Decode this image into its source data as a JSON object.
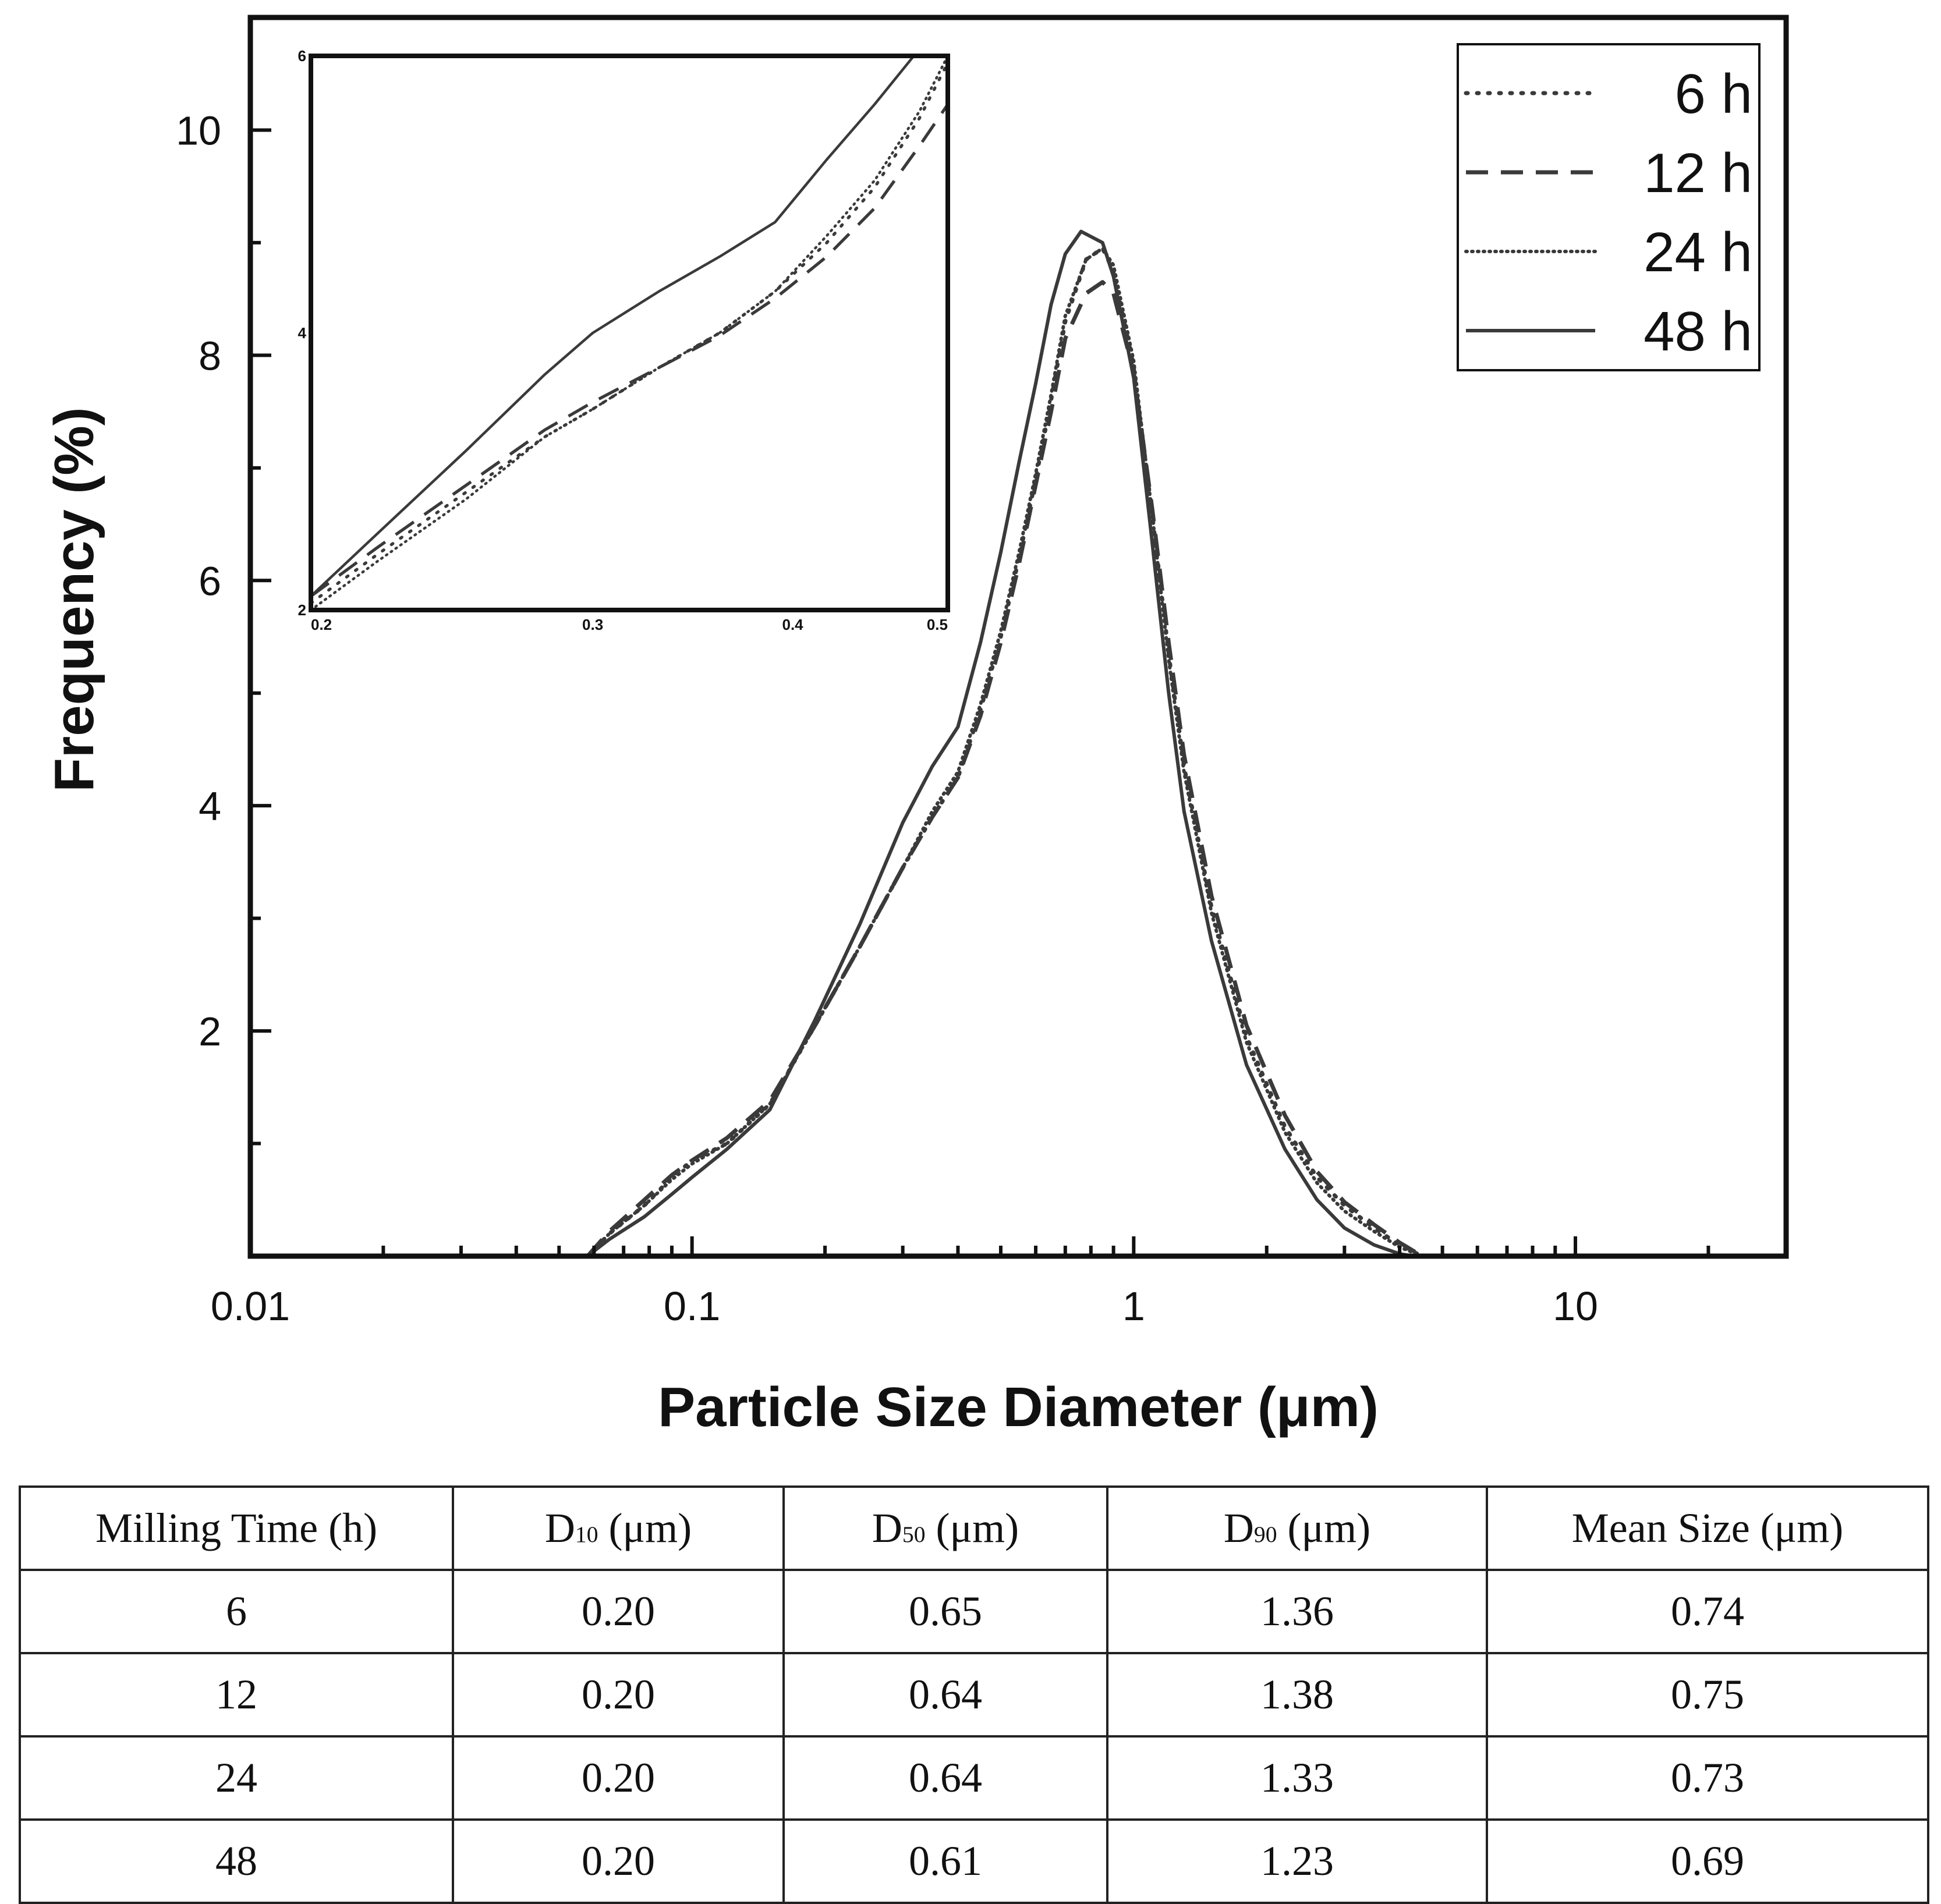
{
  "chart_data": {
    "type": "line",
    "xlabel": "Particle Size Diameter (μm)",
    "ylabel": "Frequency (%)",
    "x_scale": "log",
    "xlim": [
      0.01,
      30
    ],
    "ylim": [
      0,
      11
    ],
    "x_ticks": [
      "0.01",
      "0.1",
      "1",
      "10"
    ],
    "y_ticks": [
      "2",
      "4",
      "6",
      "8",
      "10"
    ],
    "legend_position": "top-right",
    "series": [
      {
        "name": "6 h",
        "style": "dotted",
        "x": [
          0.058,
          0.065,
          0.078,
          0.09,
          0.1,
          0.12,
          0.15,
          0.19,
          0.24,
          0.3,
          0.35,
          0.4,
          0.45,
          0.5,
          0.55,
          0.6,
          0.65,
          0.7,
          0.78,
          0.85,
          0.9,
          1.0,
          1.1,
          1.2,
          1.3,
          1.5,
          1.8,
          2.2,
          2.6,
          3.0,
          3.5,
          4.0,
          4.5
        ],
        "y": [
          0.0,
          0.2,
          0.45,
          0.7,
          0.85,
          1.0,
          1.35,
          2.05,
          2.75,
          3.45,
          3.9,
          4.25,
          4.85,
          5.5,
          6.2,
          6.9,
          7.6,
          8.3,
          8.85,
          8.95,
          8.75,
          7.9,
          6.6,
          5.35,
          4.35,
          3.1,
          1.95,
          1.15,
          0.7,
          0.45,
          0.25,
          0.1,
          0.0
        ]
      },
      {
        "name": "12 h",
        "style": "dashed",
        "x": [
          0.058,
          0.065,
          0.078,
          0.09,
          0.1,
          0.12,
          0.15,
          0.19,
          0.24,
          0.3,
          0.35,
          0.4,
          0.45,
          0.5,
          0.55,
          0.6,
          0.65,
          0.7,
          0.78,
          0.85,
          0.9,
          1.0,
          1.1,
          1.2,
          1.3,
          1.5,
          1.8,
          2.2,
          2.6,
          3.0,
          3.5,
          4.0,
          4.5
        ],
        "y": [
          0.0,
          0.22,
          0.5,
          0.72,
          0.85,
          1.05,
          1.38,
          2.05,
          2.75,
          3.45,
          3.9,
          4.25,
          4.8,
          5.45,
          6.15,
          6.85,
          7.5,
          8.15,
          8.55,
          8.65,
          8.55,
          7.85,
          6.65,
          5.45,
          4.45,
          3.2,
          2.05,
          1.25,
          0.75,
          0.48,
          0.28,
          0.12,
          0.0
        ]
      },
      {
        "name": "24 h",
        "style": "dense-dotted",
        "x": [
          0.058,
          0.065,
          0.078,
          0.09,
          0.1,
          0.12,
          0.15,
          0.19,
          0.24,
          0.3,
          0.35,
          0.4,
          0.45,
          0.5,
          0.55,
          0.6,
          0.65,
          0.7,
          0.78,
          0.85,
          0.9,
          1.0,
          1.1,
          1.2,
          1.3,
          1.5,
          1.8,
          2.2,
          2.6,
          3.0,
          3.5,
          4.0,
          4.5
        ],
        "y": [
          0.0,
          0.2,
          0.45,
          0.68,
          0.82,
          1.0,
          1.35,
          2.05,
          2.75,
          3.45,
          3.95,
          4.3,
          4.9,
          5.55,
          6.25,
          6.95,
          7.65,
          8.35,
          8.85,
          8.95,
          8.8,
          7.95,
          6.6,
          5.3,
          4.3,
          3.05,
          1.9,
          1.1,
          0.65,
          0.4,
          0.22,
          0.08,
          0.0
        ]
      },
      {
        "name": "48 h",
        "style": "solid",
        "x": [
          0.058,
          0.065,
          0.078,
          0.09,
          0.1,
          0.12,
          0.15,
          0.19,
          0.24,
          0.3,
          0.35,
          0.4,
          0.45,
          0.5,
          0.55,
          0.6,
          0.65,
          0.7,
          0.76,
          0.85,
          0.9,
          1.0,
          1.1,
          1.2,
          1.3,
          1.5,
          1.8,
          2.2,
          2.6,
          3.0,
          3.5,
          4.0,
          4.3
        ],
        "y": [
          0.0,
          0.15,
          0.35,
          0.55,
          0.7,
          0.95,
          1.3,
          2.1,
          2.95,
          3.85,
          4.35,
          4.7,
          5.45,
          6.25,
          7.05,
          7.75,
          8.45,
          8.9,
          9.1,
          9.0,
          8.7,
          7.8,
          6.35,
          5.0,
          3.95,
          2.8,
          1.7,
          0.95,
          0.5,
          0.25,
          0.1,
          0.02,
          0.0
        ]
      }
    ],
    "inset": {
      "type": "line",
      "x_scale": "log",
      "xlim": [
        0.2,
        0.5
      ],
      "ylim": [
        2,
        6
      ],
      "x_ticks": [
        "0.2",
        "0.3",
        "0.4",
        "0.5"
      ],
      "y_ticks": [
        "2",
        "4",
        "6"
      ],
      "series": [
        {
          "name": "6 h",
          "style": "dotted",
          "x": [
            0.2,
            0.22,
            0.25,
            0.28,
            0.3,
            0.33,
            0.36,
            0.39,
            0.42,
            0.45,
            0.48,
            0.5
          ],
          "y": [
            2.05,
            2.4,
            2.85,
            3.25,
            3.45,
            3.75,
            4.0,
            4.3,
            4.65,
            5.05,
            5.55,
            5.95
          ]
        },
        {
          "name": "12 h",
          "style": "dashed",
          "x": [
            0.2,
            0.22,
            0.25,
            0.28,
            0.3,
            0.33,
            0.36,
            0.39,
            0.42,
            0.45,
            0.48,
            0.5
          ],
          "y": [
            2.1,
            2.45,
            2.9,
            3.3,
            3.5,
            3.75,
            3.98,
            4.25,
            4.55,
            4.9,
            5.35,
            5.65
          ]
        },
        {
          "name": "24 h",
          "style": "dense-dotted",
          "x": [
            0.2,
            0.22,
            0.25,
            0.28,
            0.3,
            0.33,
            0.36,
            0.39,
            0.42,
            0.45,
            0.48,
            0.5
          ],
          "y": [
            2.0,
            2.35,
            2.8,
            3.25,
            3.45,
            3.75,
            4.0,
            4.3,
            4.7,
            5.1,
            5.6,
            6.0
          ]
        },
        {
          "name": "48 h",
          "style": "solid",
          "x": [
            0.2,
            0.22,
            0.25,
            0.28,
            0.3,
            0.33,
            0.36,
            0.39,
            0.42,
            0.45,
            0.48,
            0.5
          ],
          "y": [
            2.1,
            2.55,
            3.15,
            3.7,
            4.0,
            4.3,
            4.55,
            4.8,
            5.25,
            5.65,
            6.05,
            6.35
          ]
        }
      ]
    }
  },
  "table": {
    "headers": [
      {
        "main": "Milling Time (h)",
        "sub": "",
        "unit": ""
      },
      {
        "main": "D",
        "sub": "10",
        "unit": " (μm)"
      },
      {
        "main": "D",
        "sub": "50",
        "unit": " (μm)"
      },
      {
        "main": "D",
        "sub": "90",
        "unit": " (μm)"
      },
      {
        "main": "Mean Size (μm)",
        "sub": "",
        "unit": ""
      }
    ],
    "rows": [
      [
        "6",
        "0.20",
        "0.65",
        "1.36",
        "0.74"
      ],
      [
        "12",
        "0.20",
        "0.64",
        "1.38",
        "0.75"
      ],
      [
        "24",
        "0.20",
        "0.64",
        "1.33",
        "0.73"
      ],
      [
        "48",
        "0.20",
        "0.61",
        "1.23",
        "0.69"
      ]
    ]
  }
}
